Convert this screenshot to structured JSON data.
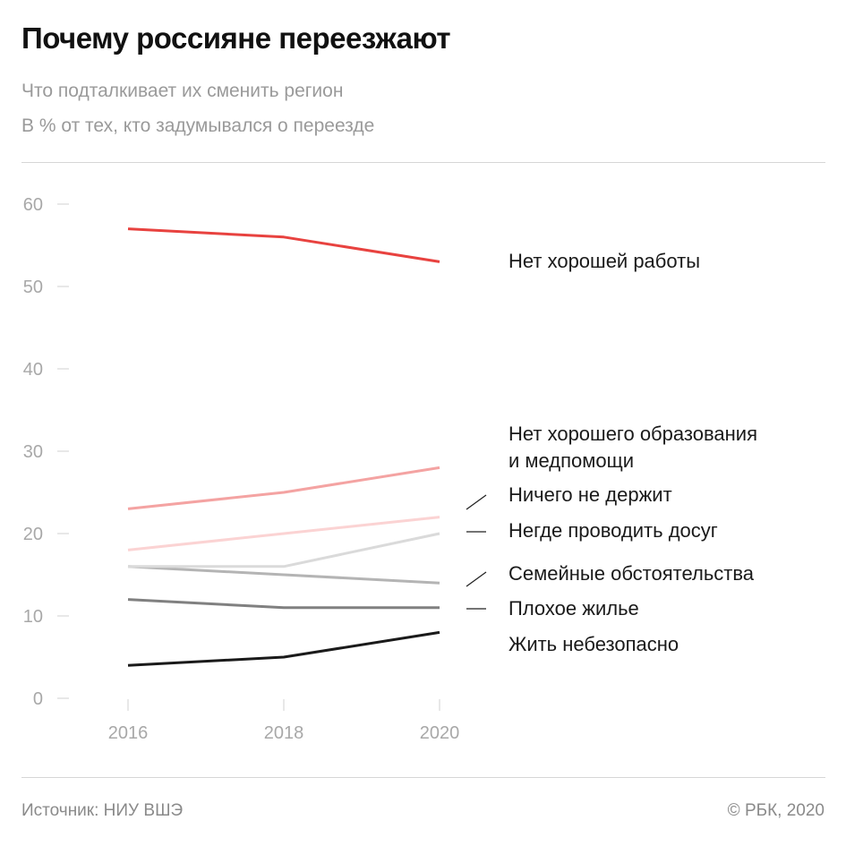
{
  "header": {
    "title": "Почему россияне переезжают",
    "subtitle": "Что подталкивает их сменить регион",
    "unit_note": "В % от тех, кто задумывался о переезде"
  },
  "footer": {
    "source": "Источник: НИУ ВШЭ",
    "copyright": "© РБК, 2020"
  },
  "chart_data": {
    "type": "line",
    "x": [
      "2016",
      "2018",
      "2020"
    ],
    "ylim": [
      0,
      60
    ],
    "yticks": [
      "0",
      "10",
      "20",
      "30",
      "40",
      "50",
      "60"
    ],
    "grid": false,
    "legend": "direct labels right",
    "series": [
      {
        "name": "Нет хорошей работы",
        "values": [
          57,
          56,
          53
        ],
        "color": "#e8423f"
      },
      {
        "name": "Нет хорошего образования и медпомощи",
        "label_lines": [
          "Нет хорошего образования",
          "и медпомощи"
        ],
        "values": [
          23,
          25,
          28
        ],
        "color": "#f4a3a2"
      },
      {
        "name": "Ничего не держит",
        "values": [
          18,
          20,
          22
        ],
        "color": "#fbd3d3"
      },
      {
        "name": "Негде проводить досуг",
        "values": [
          16,
          16,
          20
        ],
        "color": "#dadada"
      },
      {
        "name": "Семейные обстоятельства",
        "values": [
          16,
          15,
          14
        ],
        "color": "#b4b4b4"
      },
      {
        "name": "Плохое жилье",
        "values": [
          12,
          11,
          11
        ],
        "color": "#808080"
      },
      {
        "name": "Жить небезопасно",
        "values": [
          4,
          5,
          8
        ],
        "color": "#1a1a1a"
      }
    ]
  }
}
